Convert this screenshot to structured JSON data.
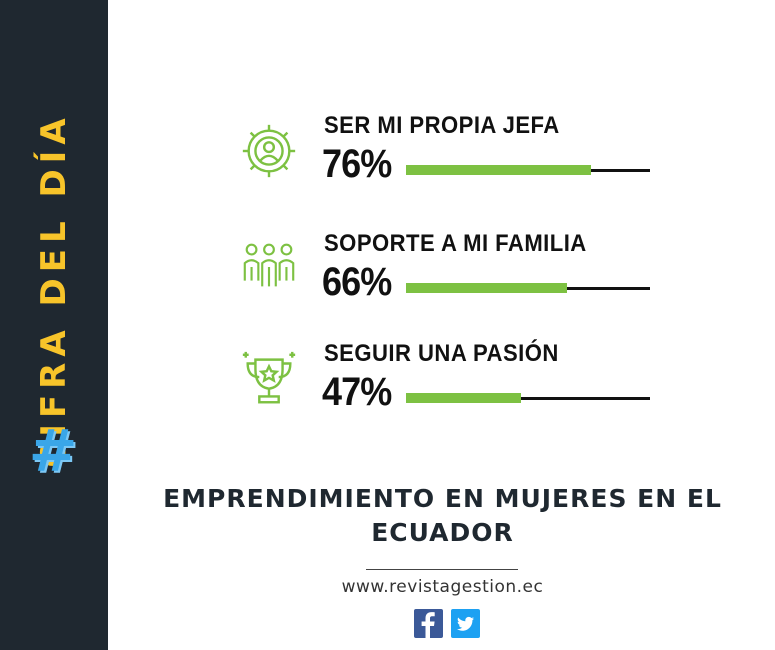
{
  "sidebar": {
    "title": "CIFRA DEL DÍA",
    "hashtag": "#",
    "colors": {
      "background": "#1f2830",
      "title": "#f7c42a",
      "hashtag": "#3aa6e8"
    }
  },
  "chart_data": {
    "type": "bar",
    "categories": [
      "SER MI PROPIA JEFA",
      "SOPORTE A MI FAMILIA",
      "SEGUIR UNA PASIÓN"
    ],
    "values": [
      76,
      66,
      47
    ],
    "value_labels": [
      "76%",
      "66%",
      "47%"
    ],
    "icons": [
      "gear-person-icon",
      "family-icon",
      "trophy-icon"
    ],
    "ylim": [
      0,
      100
    ],
    "colors": {
      "fill": "#7dc142",
      "track": "#111111"
    }
  },
  "footer": {
    "headline": "EMPRENDIMIENTO EN MUJERES EN EL ECUADOR",
    "website": "www.revistagestion.ec",
    "social_icons": [
      "facebook-icon",
      "twitter-icon"
    ]
  }
}
